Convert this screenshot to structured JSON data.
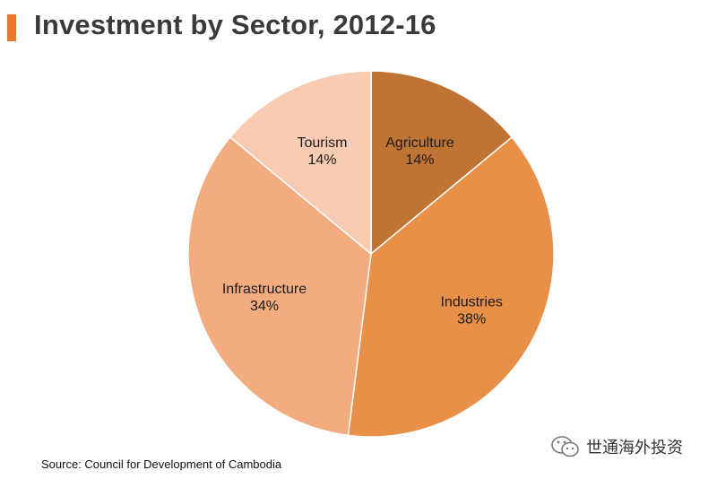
{
  "header": {
    "title": "Investment by Sector, 2012-16",
    "accent_color": "#e8792e"
  },
  "chart_data": {
    "type": "pie",
    "title": "Investment by Sector, 2012-16",
    "slices": [
      {
        "label": "Agriculture",
        "value": 14,
        "display": "14%",
        "color": "#c07434"
      },
      {
        "label": "Industries",
        "value": 38,
        "display": "38%",
        "color": "#e89048"
      },
      {
        "label": "Infrastructure",
        "value": 34,
        "display": "34%",
        "color": "#f3ab80"
      },
      {
        "label": "Tourism",
        "value": 14,
        "display": "14%",
        "color": "#f9cbb3"
      }
    ],
    "start": "12 o'clock",
    "direction": "clockwise",
    "legend": "none"
  },
  "footer": {
    "source": "Source: Council for Development of Cambodia"
  },
  "watermark": {
    "text": "世通海外投资",
    "icon": "wechat-icon"
  }
}
